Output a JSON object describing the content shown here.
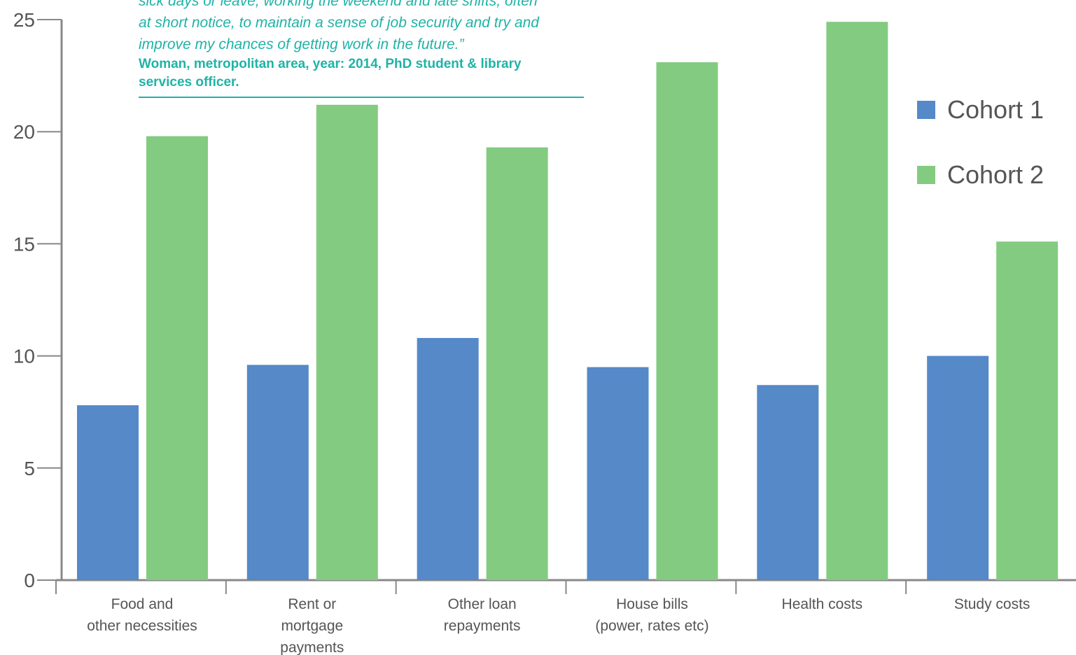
{
  "quote": {
    "lines": [
      "sick days or leave, working the weekend and late shifts, often",
      "at short notice, to maintain a sense of job security and try and",
      "improve my chances of getting work in the future.”"
    ],
    "attribution": [
      "Woman, metropolitan area, year: 2014, PhD student & library",
      "services officer."
    ]
  },
  "chart_data": {
    "type": "bar",
    "categories": [
      [
        "Food and",
        "other necessities"
      ],
      [
        "Rent or",
        "mortgage",
        "payments"
      ],
      [
        "Other loan",
        "repayments"
      ],
      [
        "House bills",
        "(power, rates etc)"
      ],
      [
        "Health costs"
      ],
      [
        "Study costs"
      ]
    ],
    "series": [
      {
        "name": "Cohort 1",
        "color": "#5589c8",
        "values": [
          7.8,
          9.6,
          10.8,
          9.5,
          8.7,
          10.0
        ]
      },
      {
        "name": "Cohort 2",
        "color": "#83cb80",
        "values": [
          19.8,
          21.2,
          19.3,
          23.1,
          24.9,
          15.1
        ]
      }
    ],
    "y_ticks": [
      "0",
      "5",
      "10",
      "15",
      "20",
      "25"
    ],
    "ylim": [
      0,
      25
    ],
    "grid": false,
    "legend_position": "top-right",
    "axis_color": "#888888",
    "tick_label_color": "#555555"
  }
}
